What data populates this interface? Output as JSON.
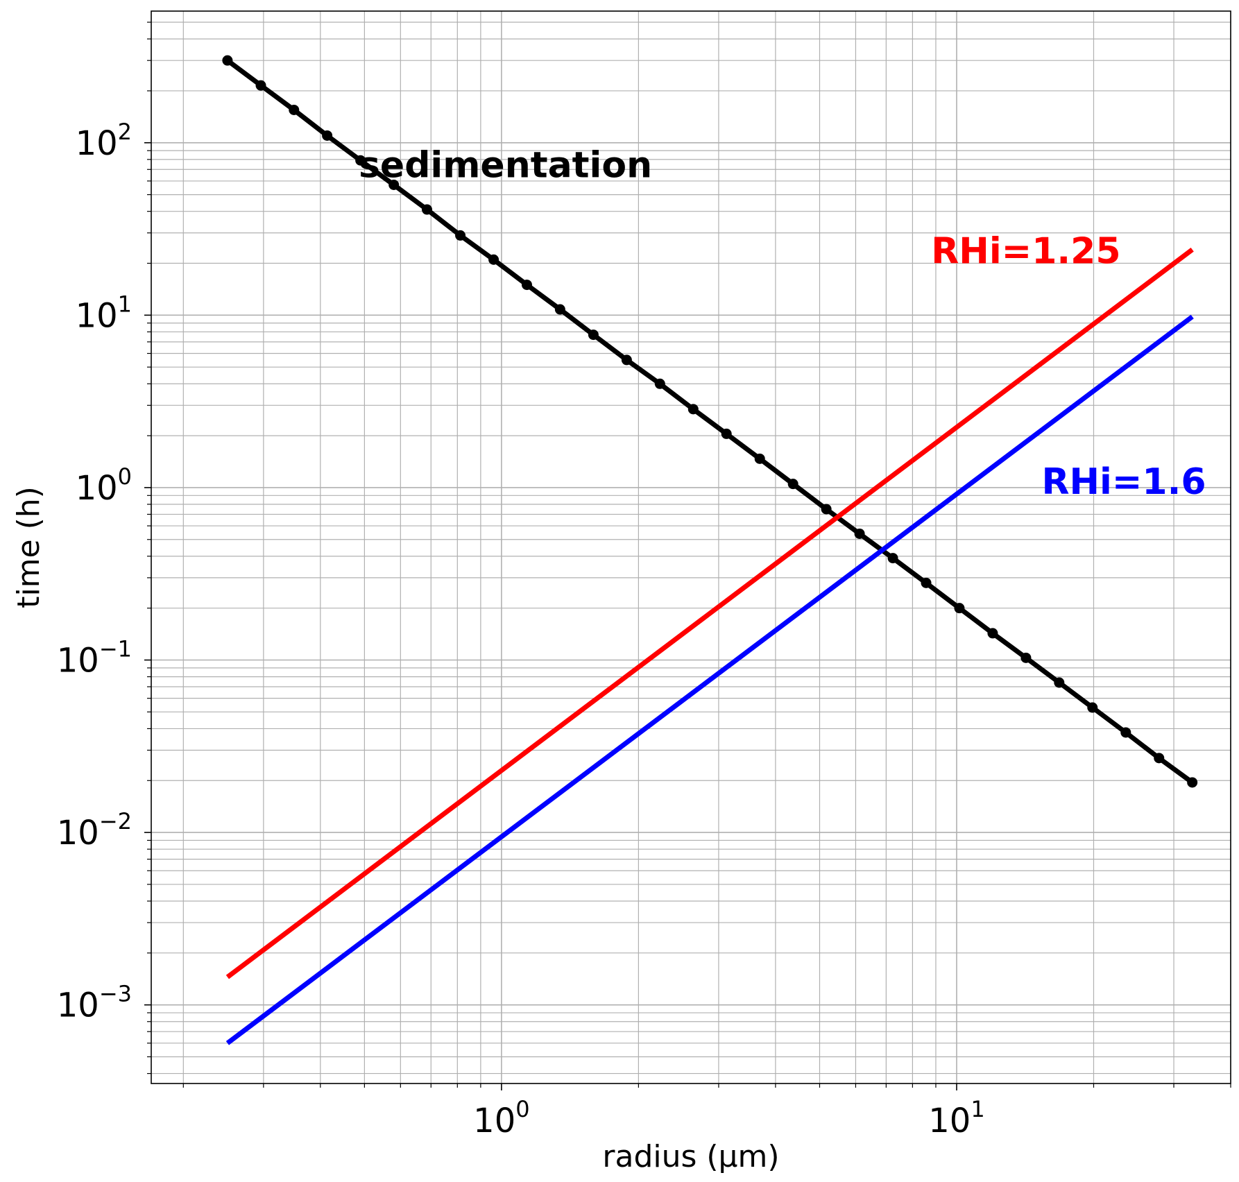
{
  "chart_data": {
    "type": "line",
    "xscale": "log",
    "yscale": "log",
    "xlabel": "radius (μm)",
    "ylabel": "time (h)",
    "xlim": [
      0.17,
      40
    ],
    "ylim": [
      0.00035,
      580
    ],
    "grid": true,
    "x_major_ticks": [
      {
        "value": 1,
        "label": "10",
        "exp": "0"
      },
      {
        "value": 10,
        "label": "10",
        "exp": "1"
      }
    ],
    "y_major_ticks": [
      {
        "value": 0.001,
        "label": "10",
        "exp": "−3"
      },
      {
        "value": 0.01,
        "label": "10",
        "exp": "−2"
      },
      {
        "value": 0.1,
        "label": "10",
        "exp": "−1"
      },
      {
        "value": 1,
        "label": "10",
        "exp": "0"
      },
      {
        "value": 10,
        "label": "10",
        "exp": "1"
      },
      {
        "value": 100,
        "label": "10",
        "exp": "2"
      }
    ],
    "series": [
      {
        "name": "sedimentation",
        "color": "#000000",
        "markers": true,
        "x": [
          0.25,
          0.296,
          0.35,
          0.414,
          0.49,
          0.58,
          0.686,
          0.812,
          0.961,
          1.137,
          1.345,
          1.592,
          1.884,
          2.229,
          2.638,
          3.121,
          3.694,
          4.371,
          5.172,
          6.12,
          7.242,
          8.57,
          10.14,
          12.0,
          14.2,
          16.8,
          19.88,
          23.53,
          27.84,
          32.94
        ],
        "y": [
          300,
          215,
          155,
          110,
          79,
          57,
          41,
          29,
          21,
          15,
          10.8,
          7.7,
          5.5,
          4.0,
          2.85,
          2.05,
          1.47,
          1.05,
          0.75,
          0.54,
          0.39,
          0.28,
          0.2,
          0.143,
          0.103,
          0.074,
          0.053,
          0.038,
          0.027,
          0.0195
        ]
      },
      {
        "name": "RHi=1.25",
        "color": "#ff0000",
        "markers": false,
        "x": [
          0.25,
          32.94
        ],
        "y": [
          0.00145,
          24
        ]
      },
      {
        "name": "RHi=1.6",
        "color": "#0000ff",
        "markers": false,
        "x": [
          0.25,
          32.94
        ],
        "y": [
          0.0006,
          9.8
        ]
      }
    ],
    "annotations": [
      {
        "text": "sedimentation",
        "color": "#000000",
        "x": 1.02,
        "y": 63
      },
      {
        "text": "RHi=1.25",
        "color": "#ff0000",
        "x": 14.2,
        "y": 20
      },
      {
        "text": "RHi=1.6",
        "color": "#0000ff",
        "x": 23.3,
        "y": 0.92
      }
    ]
  }
}
